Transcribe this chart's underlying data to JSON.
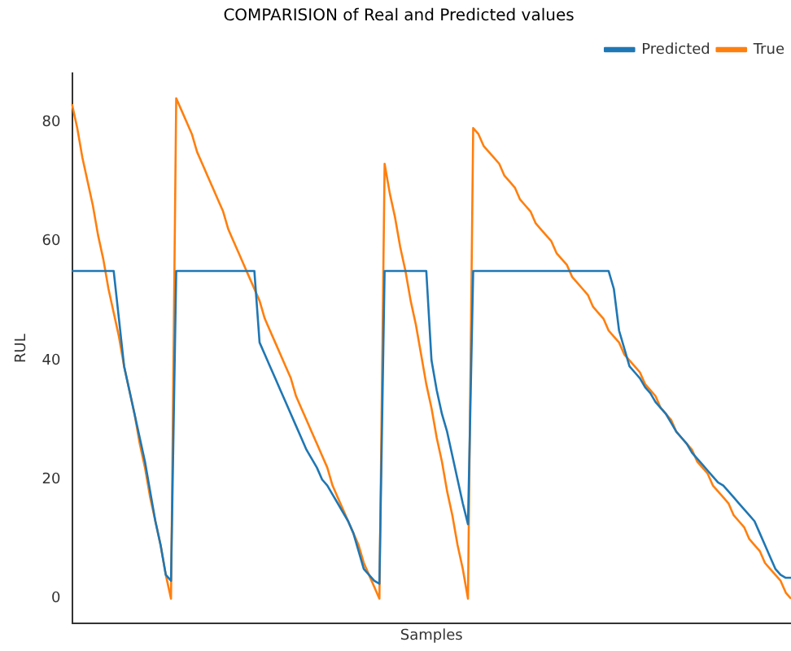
{
  "chart_data": {
    "type": "line",
    "title": "COMPARISION of Real and Predicted values",
    "xlabel": "Samples",
    "ylabel": "RUL",
    "categories": [
      null,
      null,
      null,
      null,
      null,
      null,
      null,
      null,
      null,
      null,
      null,
      null,
      null,
      null,
      null,
      null,
      null,
      null,
      null,
      null,
      null,
      null,
      null,
      null,
      null,
      null,
      null,
      null,
      null,
      null,
      null,
      null,
      null,
      null,
      null,
      null,
      null,
      null,
      null,
      null,
      null,
      null,
      null,
      null,
      null,
      null,
      null,
      null,
      null,
      null,
      null,
      null,
      null,
      null,
      null,
      null,
      null,
      null,
      null,
      null,
      null,
      null,
      null,
      null,
      null,
      null,
      null,
      null,
      null,
      null,
      null,
      null,
      null,
      null,
      null,
      null,
      null,
      null,
      null,
      null,
      null,
      null,
      null,
      null,
      null,
      null,
      null,
      null,
      null,
      null,
      null,
      null,
      null,
      null,
      null,
      null,
      null,
      null,
      null,
      null,
      null,
      null,
      null,
      null,
      null,
      null,
      null,
      null,
      null,
      null,
      null,
      null,
      null,
      null,
      null,
      null,
      null,
      null,
      null,
      null,
      null,
      null,
      null,
      null,
      null,
      null,
      null,
      null,
      null,
      null,
      null,
      null,
      null,
      null,
      null,
      null,
      null,
      null,
      null
    ],
    "series": [
      {
        "name": "Predicted",
        "color": "#1f77b4",
        "values": [
          55,
          55,
          55,
          55,
          55,
          55,
          55,
          55,
          55,
          47,
          39,
          35,
          31,
          27,
          23,
          18,
          13,
          9,
          4,
          3,
          55,
          55,
          55,
          55,
          55,
          55,
          55,
          55,
          55,
          55,
          55,
          55,
          55,
          55,
          55,
          55,
          43,
          41,
          39,
          37,
          35,
          33,
          31,
          29,
          27,
          25,
          23.5,
          22,
          20,
          19,
          17.5,
          16,
          14.5,
          13,
          11,
          8,
          5,
          4,
          3,
          2.5,
          55,
          55,
          55,
          55,
          55,
          55,
          55,
          55,
          55,
          40,
          35,
          31,
          28,
          24,
          20,
          16,
          12.5,
          55,
          55,
          55,
          55,
          55,
          55,
          55,
          55,
          55,
          55,
          55,
          55,
          55,
          55,
          55,
          55,
          55,
          55,
          55,
          55,
          55,
          55,
          55,
          55,
          55,
          55,
          55,
          52,
          45,
          42,
          39,
          38,
          37,
          35.5,
          34.5,
          33,
          32,
          31,
          29.5,
          28,
          27,
          26,
          24.5,
          23.5,
          22.5,
          21.5,
          20.5,
          19.5,
          19,
          18,
          17,
          16,
          15,
          14,
          13,
          11,
          9,
          7,
          5,
          4,
          3.5,
          3.5
        ]
      },
      {
        "name": "True",
        "color": "#ff7f0e",
        "values": [
          83,
          79,
          74,
          70,
          66,
          61,
          57,
          52,
          48,
          44,
          39,
          35,
          31,
          26,
          22,
          17,
          13,
          9,
          4,
          0,
          84,
          82,
          80,
          78,
          75,
          73,
          71,
          69,
          67,
          65,
          62,
          60,
          58,
          56,
          54,
          52,
          50,
          47,
          45,
          43,
          41,
          39,
          37,
          34,
          32,
          30,
          28,
          26,
          24,
          22,
          19,
          17,
          15,
          13,
          11,
          9,
          6,
          4,
          2,
          0,
          73,
          68,
          64,
          59,
          55,
          50,
          46,
          41,
          36,
          32,
          27,
          23,
          18,
          14,
          9,
          5,
          0,
          79,
          78,
          76,
          75,
          74,
          73,
          71,
          70,
          69,
          67,
          66,
          65,
          63,
          62,
          61,
          60,
          58,
          57,
          56,
          54,
          53,
          52,
          51,
          49,
          48,
          47,
          45,
          44,
          43,
          41,
          40,
          39,
          38,
          36,
          35,
          34,
          32,
          31,
          30,
          28,
          27,
          26,
          25,
          23,
          22,
          21,
          19,
          18,
          17,
          16,
          14,
          13,
          12,
          10,
          9,
          8,
          6,
          5,
          4,
          3,
          1,
          0
        ]
      }
    ],
    "ylim": [
      -4.2,
      88.2
    ],
    "yticks": [
      0,
      20,
      40,
      60,
      80
    ],
    "grid": false,
    "legend": "top right",
    "marker": "none",
    "tick_labels": "y"
  }
}
